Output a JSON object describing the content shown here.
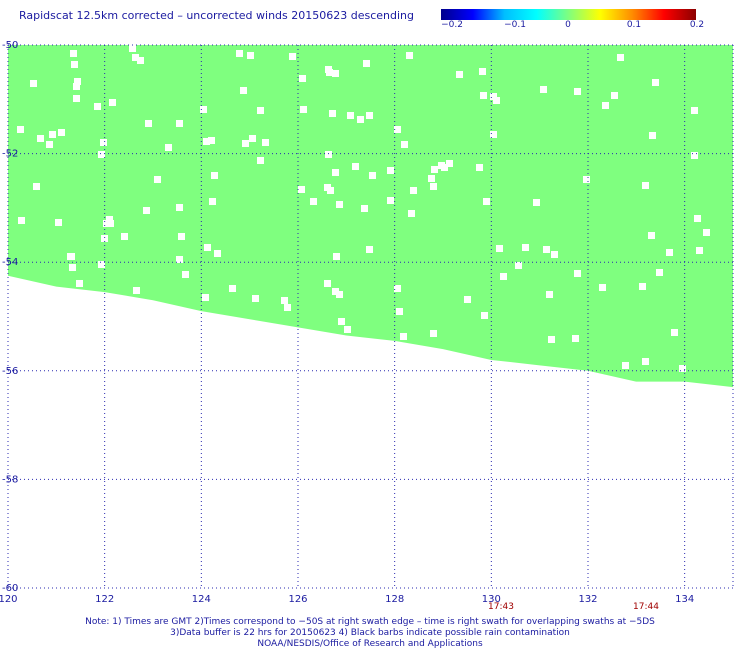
{
  "title": "Rapidscat 12.5km corrected – uncorrected winds 20150623 descending",
  "colorbar": {
    "ticks": [
      "−0.2",
      "−0.1",
      "0",
      "0.1",
      "0.2"
    ],
    "range": [
      -0.2,
      0.2
    ],
    "colors": [
      "#00008b",
      "#0000ff",
      "#00bfff",
      "#00ffff",
      "#7fff7f",
      "#ffff00",
      "#ff8c00",
      "#ff0000",
      "#8b0000"
    ]
  },
  "chart_data": {
    "type": "heatmap",
    "title": "Rapidscat 12.5km corrected – uncorrected winds 20150623 descending",
    "xlabel": "",
    "ylabel": "",
    "xlim": [
      120,
      135
    ],
    "ylim": [
      -60,
      -50
    ],
    "x_ticks": [
      "120",
      "122",
      "124",
      "126",
      "128",
      "130",
      "132",
      "134"
    ],
    "y_ticks": [
      "-50",
      "-52",
      "-54",
      "-56",
      "-58",
      "-60"
    ],
    "grid": true,
    "field_value": 0,
    "field_color": "#7fff7f",
    "swath_lower_edge": [
      {
        "lon": 120.0,
        "lat": -54.25
      },
      {
        "lon": 121.0,
        "lat": -54.45
      },
      {
        "lon": 122.0,
        "lat": -54.55
      },
      {
        "lon": 123.0,
        "lat": -54.7
      },
      {
        "lon": 124.0,
        "lat": -54.9
      },
      {
        "lon": 125.0,
        "lat": -55.05
      },
      {
        "lon": 126.0,
        "lat": -55.2
      },
      {
        "lon": 127.0,
        "lat": -55.35
      },
      {
        "lon": 128.0,
        "lat": -55.45
      },
      {
        "lon": 129.0,
        "lat": -55.6
      },
      {
        "lon": 130.0,
        "lat": -55.8
      },
      {
        "lon": 131.0,
        "lat": -55.9
      },
      {
        "lon": 132.0,
        "lat": -56.0
      },
      {
        "lon": 133.0,
        "lat": -56.2
      },
      {
        "lon": 134.0,
        "lat": -56.2
      },
      {
        "lon": 135.0,
        "lat": -56.3
      }
    ],
    "time_labels": [
      {
        "text": "17:43",
        "lon": 130.2
      },
      {
        "text": "17:44",
        "lon": 133.2
      }
    ]
  },
  "notes": [
    "Note: 1) Times are GMT 2)Times correspond to −50S at right swath edge – time is right swath for overlapping swaths at −5DS",
    "3)Data buffer is 22 hrs for 20150623 4) Black barbs indicate possible rain contamination",
    "NOAA/NESDIS/Office of Research and Applications"
  ]
}
